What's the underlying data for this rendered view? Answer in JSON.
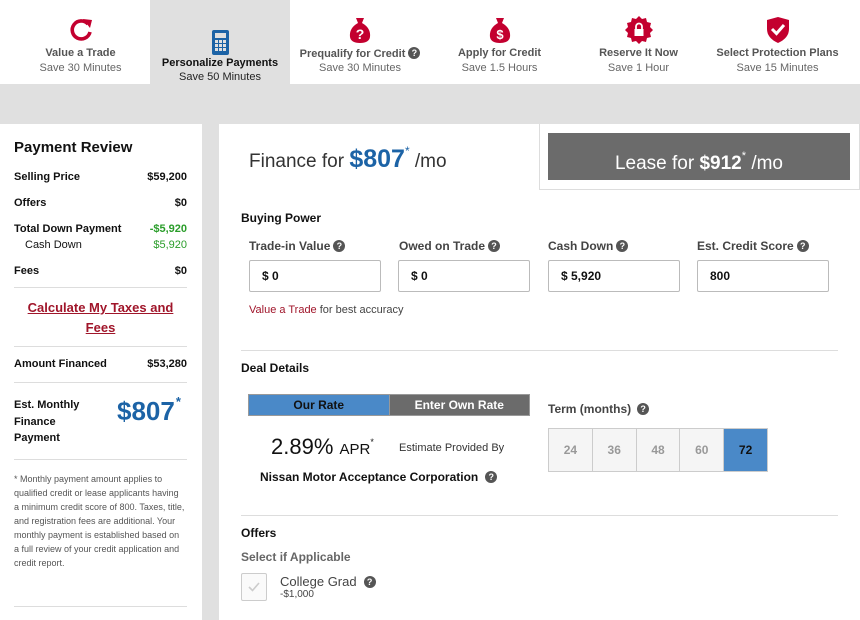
{
  "steps": [
    {
      "title": "Value a Trade",
      "sub": "Save 30 Minutes",
      "icon": "refresh-icon"
    },
    {
      "title": "Personalize Payments",
      "sub": "Save 50 Minutes",
      "icon": "calculator-icon",
      "active": true
    },
    {
      "title": "Prequalify for Credit",
      "sub": "Save 30 Minutes",
      "icon": "moneybag-question-icon"
    },
    {
      "title": "Apply for Credit",
      "sub": "Save 1.5 Hours",
      "icon": "moneybag-dollar-icon"
    },
    {
      "title": "Reserve It Now",
      "sub": "Save 1 Hour",
      "icon": "lock-badge-icon"
    },
    {
      "title": "Select Protection Plans",
      "sub": "Save 15 Minutes",
      "icon": "shield-check-icon"
    }
  ],
  "colors": {
    "brand_red": "#c3002f",
    "accent_blue": "#1c63a6",
    "green": "#2a9d2a"
  },
  "sidebar": {
    "title": "Payment Review",
    "selling_price_label": "Selling Price",
    "selling_price": "$59,200",
    "offers_label": "Offers",
    "offers": "$0",
    "total_down_label": "Total Down Payment",
    "total_down": "-$5,920",
    "cash_down_label": "Cash Down",
    "cash_down": "$5,920",
    "fees_label": "Fees",
    "fees": "$0",
    "calc_link": "Calculate My Taxes and Fees",
    "amount_financed_label": "Amount Financed",
    "amount_financed": "$53,280",
    "est_monthly_label": "Est. Monthly Finance Payment",
    "est_monthly": "$807",
    "asterisk": "*",
    "footnote": "* Monthly payment amount applies to qualified credit or lease applicants having a minimum credit score of 800. Taxes, title, and registration fees are additional. Your monthly payment is established based on a full review of your credit application and credit report."
  },
  "finance": {
    "prefix": "Finance for",
    "amount": "$807",
    "asterisk": "*",
    "suffix": "/mo"
  },
  "lease": {
    "prefix": "Lease for",
    "amount": "$912",
    "asterisk": "*",
    "suffix": "/mo"
  },
  "buying_power": {
    "title": "Buying Power",
    "fields": [
      {
        "label": "Trade-in Value",
        "value": "$ 0"
      },
      {
        "label": "Owed on Trade",
        "value": "$ 0"
      },
      {
        "label": "Cash Down",
        "value": "$ 5,920"
      },
      {
        "label": "Est. Credit Score",
        "value": "800"
      }
    ],
    "hint_link": "Value a Trade",
    "hint_text": "for best accuracy"
  },
  "deal": {
    "title": "Deal Details",
    "our_rate": "Our Rate",
    "own_rate": "Enter Own Rate",
    "apr_value": "2.89%",
    "apr_unit": "APR",
    "apr_asterisk": "*",
    "estimate_by": "Estimate Provided By",
    "lender": "Nissan Motor Acceptance Corporation",
    "term_label": "Term (months)",
    "terms": [
      "24",
      "36",
      "48",
      "60",
      "72"
    ],
    "selected_term": "72"
  },
  "offers": {
    "title": "Offers",
    "subtitle": "Select if Applicable",
    "items": [
      {
        "name": "College Grad",
        "value": "-$1,000",
        "checked": false
      }
    ]
  }
}
